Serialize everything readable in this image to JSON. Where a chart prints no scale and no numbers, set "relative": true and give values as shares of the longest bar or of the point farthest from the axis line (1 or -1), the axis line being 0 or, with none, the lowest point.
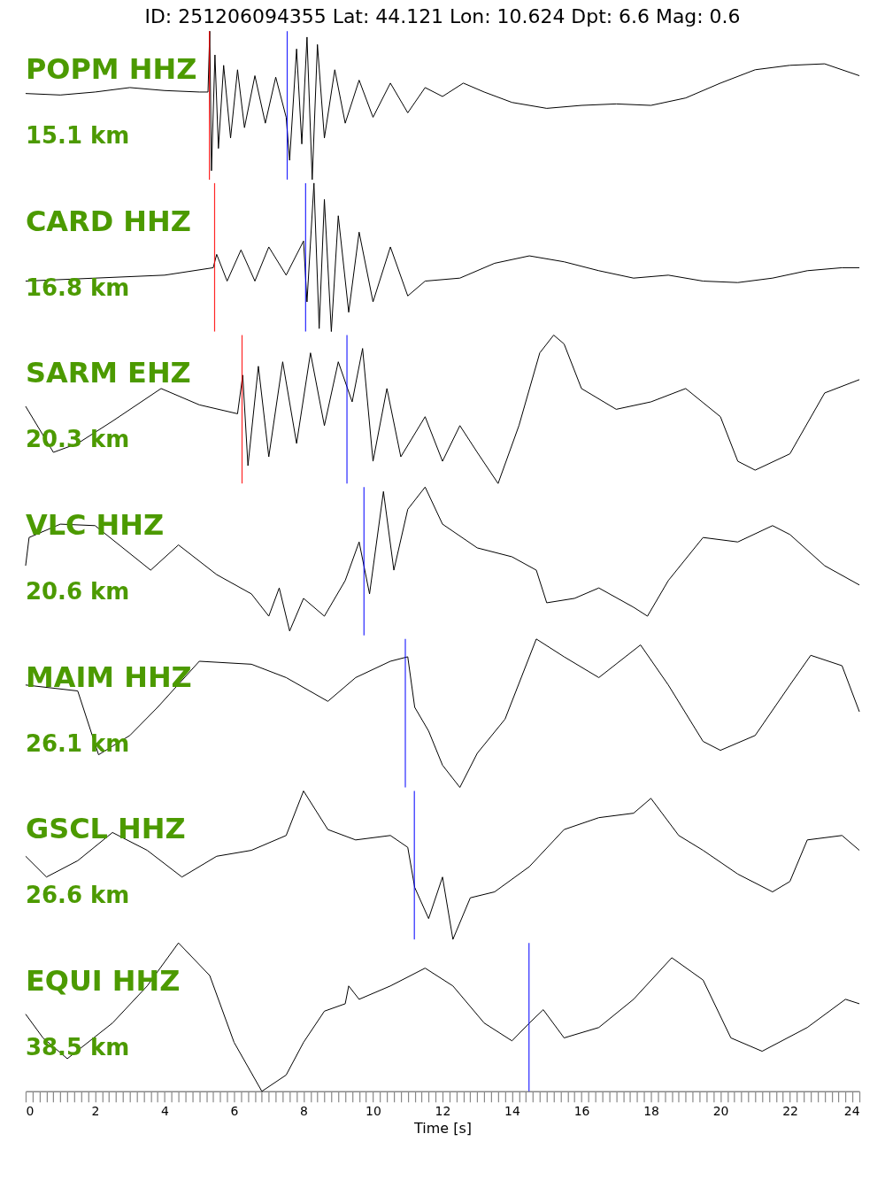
{
  "chart_data": [
    {
      "type": "line",
      "relative": true,
      "title": "ID: 251206094355 Lat:  44.121 Lon:  10.624 Dpt:     6.6 Mag:   0.6",
      "annotations": [
        "POPM HHZ",
        "15.1 km"
      ],
      "xlim": [
        0,
        24
      ],
      "tick_labels": false,
      "x": [
        0,
        1,
        2,
        3,
        4,
        5,
        5.25,
        5.3,
        5.35,
        5.45,
        5.55,
        5.7,
        5.9,
        6.1,
        6.3,
        6.6,
        6.9,
        7.2,
        7.5,
        7.6,
        7.8,
        7.95,
        8.1,
        8.25,
        8.4,
        8.6,
        8.9,
        9.2,
        9.6,
        10,
        10.5,
        11,
        11.5,
        12,
        12.6,
        13.2,
        14,
        15,
        16,
        17,
        18,
        19,
        20,
        21,
        22,
        23,
        24
      ],
      "series": [
        {
          "color": "#000000",
          "values": [
            0.58,
            0.57,
            0.59,
            0.62,
            0.6,
            0.59,
            0.59,
            1.0,
            0.06,
            0.84,
            0.21,
            0.77,
            0.28,
            0.74,
            0.35,
            0.7,
            0.38,
            0.69,
            0.42,
            0.13,
            0.88,
            0.24,
            0.96,
            0,
            0.91,
            0.28,
            0.74,
            0.38,
            0.67,
            0.42,
            0.65,
            0.45,
            0.62,
            0.56,
            0.65,
            0.59,
            0.52,
            0.48,
            0.5,
            0.51,
            0.5,
            0.55,
            0.65,
            0.74,
            0.77,
            0.78,
            0.7
          ]
        }
      ],
      "ref_lines": [
        {
          "axis": "x",
          "value": 5.29,
          "color": "#ff0000"
        },
        {
          "axis": "x",
          "value": 7.53,
          "color": "#0000ff"
        }
      ]
    },
    {
      "type": "line",
      "relative": true,
      "annotations": [
        "CARD HHZ",
        "16.8 km"
      ],
      "xlim": [
        0,
        24
      ],
      "tick_labels": false,
      "x": [
        0,
        2,
        4,
        5.4,
        5.5,
        5.8,
        6.2,
        6.6,
        7,
        7.5,
        8,
        8.1,
        8.3,
        8.45,
        8.6,
        8.8,
        9,
        9.3,
        9.6,
        10,
        10.5,
        11,
        11.5,
        12.5,
        13.5,
        14.5,
        15.5,
        16.5,
        17.5,
        18.5,
        19.5,
        20.5,
        21.5,
        22.5,
        23.5,
        24
      ],
      "series": [
        {
          "color": "#000000",
          "values": [
            0.34,
            0.36,
            0.38,
            0.43,
            0.52,
            0.34,
            0.55,
            0.34,
            0.57,
            0.38,
            0.61,
            0.2,
            1.0,
            0.02,
            0.89,
            0,
            0.78,
            0.13,
            0.67,
            0.2,
            0.57,
            0.24,
            0.34,
            0.36,
            0.46,
            0.51,
            0.47,
            0.41,
            0.36,
            0.38,
            0.34,
            0.33,
            0.36,
            0.41,
            0.43,
            0.43
          ]
        }
      ],
      "ref_lines": [
        {
          "axis": "x",
          "value": 5.44,
          "color": "#ff0000"
        },
        {
          "axis": "x",
          "value": 8.06,
          "color": "#0000ff"
        }
      ]
    },
    {
      "type": "line",
      "relative": true,
      "annotations": [
        "SARM EHZ",
        "20.3 km"
      ],
      "xlim": [
        0,
        24
      ],
      "tick_labels": false,
      "x": [
        0,
        0.8,
        1.5,
        2.5,
        3.9,
        5,
        6.1,
        6.25,
        6.4,
        6.7,
        7,
        7.4,
        7.8,
        8.2,
        8.6,
        9,
        9.4,
        9.7,
        10,
        10.4,
        10.8,
        11.5,
        12,
        12.5,
        13,
        13.6,
        14.2,
        14.8,
        15.2,
        15.5,
        16,
        17,
        18,
        19,
        20,
        20.5,
        21,
        22,
        23,
        24
      ],
      "series": [
        {
          "color": "#000000",
          "values": [
            0.52,
            0.21,
            0.27,
            0.42,
            0.64,
            0.53,
            0.47,
            0.73,
            0.12,
            0.79,
            0.18,
            0.82,
            0.27,
            0.88,
            0.39,
            0.82,
            0.55,
            0.91,
            0.15,
            0.64,
            0.18,
            0.45,
            0.15,
            0.39,
            0.21,
            0,
            0.39,
            0.88,
            1.0,
            0.94,
            0.64,
            0.5,
            0.55,
            0.64,
            0.45,
            0.15,
            0.09,
            0.2,
            0.61,
            0.7
          ]
        }
      ],
      "ref_lines": [
        {
          "axis": "x",
          "value": 6.23,
          "color": "#ff0000"
        },
        {
          "axis": "x",
          "value": 9.25,
          "color": "#0000ff"
        }
      ]
    },
    {
      "type": "line",
      "relative": true,
      "annotations": [
        "VLC HHZ",
        "20.6 km"
      ],
      "xlim": [
        0,
        24
      ],
      "tick_labels": false,
      "x": [
        0,
        0.1,
        1,
        2,
        3.6,
        4.4,
        5.5,
        6.5,
        7,
        7.3,
        7.6,
        8,
        8.6,
        9.2,
        9.6,
        9.9,
        10.3,
        10.6,
        11,
        11.5,
        12,
        13,
        14,
        14.7,
        15,
        15.8,
        16.5,
        17.5,
        17.9,
        18.5,
        19.5,
        20.5,
        21.5,
        22,
        23,
        24
      ],
      "series": [
        {
          "color": "#000000",
          "values": [
            0.47,
            0.66,
            0.75,
            0.74,
            0.44,
            0.61,
            0.41,
            0.28,
            0.13,
            0.32,
            0.03,
            0.25,
            0.13,
            0.37,
            0.63,
            0.28,
            0.97,
            0.44,
            0.85,
            1.0,
            0.75,
            0.59,
            0.53,
            0.44,
            0.22,
            0.25,
            0.32,
            0.19,
            0.13,
            0.37,
            0.66,
            0.63,
            0.74,
            0.68,
            0.47,
            0.34
          ]
        }
      ],
      "ref_lines": [
        {
          "axis": "x",
          "value": 9.74,
          "color": "#0000ff"
        }
      ]
    },
    {
      "type": "line",
      "relative": true,
      "annotations": [
        "MAIM HHZ",
        "26.1 km"
      ],
      "xlim": [
        0,
        24
      ],
      "tick_labels": false,
      "x": [
        0,
        1.5,
        2.1,
        3,
        3.8,
        5,
        6.5,
        7.5,
        8.7,
        9.5,
        10.5,
        11,
        11.2,
        11.6,
        12,
        12.5,
        13,
        13.8,
        14.7,
        15.5,
        16.5,
        17.7,
        18.5,
        19.5,
        20,
        21,
        22,
        22.6,
        23.5,
        24
      ],
      "series": [
        {
          "color": "#000000",
          "values": [
            0.69,
            0.65,
            0.22,
            0.35,
            0.54,
            0.85,
            0.83,
            0.74,
            0.58,
            0.74,
            0.85,
            0.88,
            0.54,
            0.38,
            0.15,
            0,
            0.23,
            0.46,
            1.0,
            0.88,
            0.74,
            0.96,
            0.69,
            0.31,
            0.25,
            0.35,
            0.69,
            0.89,
            0.82,
            0.51
          ]
        }
      ],
      "ref_lines": [
        {
          "axis": "x",
          "value": 10.93,
          "color": "#0000ff"
        }
      ]
    },
    {
      "type": "line",
      "relative": true,
      "annotations": [
        "GSCL HHZ",
        "26.6 km"
      ],
      "xlim": [
        0,
        24
      ],
      "tick_labels": false,
      "x": [
        0,
        0.6,
        1.5,
        2.5,
        3.5,
        4.5,
        5.5,
        6.5,
        7.5,
        8,
        8.7,
        9.5,
        10.5,
        11,
        11.2,
        11.6,
        12,
        12.3,
        12.8,
        13.5,
        14.5,
        15.5,
        16.5,
        17.5,
        18,
        18.8,
        19.5,
        20.5,
        21.5,
        22,
        22.5,
        23.5,
        24
      ],
      "series": [
        {
          "color": "#000000",
          "values": [
            0.56,
            0.42,
            0.53,
            0.72,
            0.6,
            0.42,
            0.56,
            0.6,
            0.7,
            1.0,
            0.74,
            0.67,
            0.7,
            0.62,
            0.35,
            0.14,
            0.42,
            0,
            0.28,
            0.32,
            0.49,
            0.74,
            0.82,
            0.85,
            0.95,
            0.7,
            0.6,
            0.44,
            0.32,
            0.39,
            0.67,
            0.7,
            0.6
          ]
        }
      ],
      "ref_lines": [
        {
          "axis": "x",
          "value": 11.19,
          "color": "#0000ff"
        }
      ]
    },
    {
      "type": "line",
      "relative": true,
      "annotations": [
        "EQUI HHZ",
        "38.5 km"
      ],
      "xlim": [
        0,
        24
      ],
      "tick_labels": "x",
      "xlabel": "Time [s]",
      "xticks": [
        0,
        {
          "value": 0.2,
          "label": null
        },
        {
          "value": 0.4,
          "label": null
        },
        {
          "value": 0.6,
          "label": null
        },
        {
          "value": 0.8,
          "label": null
        },
        {
          "value": 1,
          "label": null
        },
        {
          "value": 1.2,
          "label": null
        },
        {
          "value": 1.4,
          "label": null
        },
        {
          "value": 1.6,
          "label": null
        },
        {
          "value": 1.8,
          "label": null
        },
        2,
        {
          "value": 2.2,
          "label": null
        },
        {
          "value": 2.4,
          "label": null
        },
        {
          "value": 2.6,
          "label": null
        },
        {
          "value": 2.8,
          "label": null
        },
        {
          "value": 3,
          "label": null
        },
        {
          "value": 3.2,
          "label": null
        },
        {
          "value": 3.4,
          "label": null
        },
        {
          "value": 3.6,
          "label": null
        },
        {
          "value": 3.8,
          "label": null
        },
        4,
        {
          "value": 4.2,
          "label": null
        },
        {
          "value": 4.4,
          "label": null
        },
        {
          "value": 4.6,
          "label": null
        },
        {
          "value": 4.8,
          "label": null
        },
        {
          "value": 5,
          "label": null
        },
        {
          "value": 5.2,
          "label": null
        },
        {
          "value": 5.4,
          "label": null
        },
        {
          "value": 5.6,
          "label": null
        },
        {
          "value": 5.8,
          "label": null
        },
        6,
        {
          "value": 6.2,
          "label": null
        },
        {
          "value": 6.4,
          "label": null
        },
        {
          "value": 6.6,
          "label": null
        },
        {
          "value": 6.8,
          "label": null
        },
        {
          "value": 7,
          "label": null
        },
        {
          "value": 7.2,
          "label": null
        },
        {
          "value": 7.4,
          "label": null
        },
        {
          "value": 7.6,
          "label": null
        },
        {
          "value": 7.8,
          "label": null
        },
        8,
        {
          "value": 8.2,
          "label": null
        },
        {
          "value": 8.4,
          "label": null
        },
        {
          "value": 8.6,
          "label": null
        },
        {
          "value": 8.8,
          "label": null
        },
        {
          "value": 9,
          "label": null
        },
        {
          "value": 9.2,
          "label": null
        },
        {
          "value": 9.4,
          "label": null
        },
        {
          "value": 9.6,
          "label": null
        },
        {
          "value": 9.8,
          "label": null
        },
        10,
        {
          "value": 10.2,
          "label": null
        },
        {
          "value": 10.4,
          "label": null
        },
        {
          "value": 10.6,
          "label": null
        },
        {
          "value": 10.8,
          "label": null
        },
        {
          "value": 11,
          "label": null
        },
        {
          "value": 11.2,
          "label": null
        },
        {
          "value": 11.4,
          "label": null
        },
        {
          "value": 11.6,
          "label": null
        },
        {
          "value": 11.8,
          "label": null
        },
        12,
        {
          "value": 12.2,
          "label": null
        },
        {
          "value": 12.4,
          "label": null
        },
        {
          "value": 12.6,
          "label": null
        },
        {
          "value": 12.8,
          "label": null
        },
        {
          "value": 13,
          "label": null
        },
        {
          "value": 13.2,
          "label": null
        },
        {
          "value": 13.4,
          "label": null
        },
        {
          "value": 13.6,
          "label": null
        },
        {
          "value": 13.8,
          "label": null
        },
        14,
        {
          "value": 14.2,
          "label": null
        },
        {
          "value": 14.4,
          "label": null
        },
        {
          "value": 14.6,
          "label": null
        },
        {
          "value": 14.8,
          "label": null
        },
        {
          "value": 15,
          "label": null
        },
        {
          "value": 15.2,
          "label": null
        },
        {
          "value": 15.4,
          "label": null
        },
        {
          "value": 15.6,
          "label": null
        },
        {
          "value": 15.8,
          "label": null
        },
        16,
        {
          "value": 16.2,
          "label": null
        },
        {
          "value": 16.4,
          "label": null
        },
        {
          "value": 16.6,
          "label": null
        },
        {
          "value": 16.8,
          "label": null
        },
        {
          "value": 17,
          "label": null
        },
        {
          "value": 17.2,
          "label": null
        },
        {
          "value": 17.4,
          "label": null
        },
        {
          "value": 17.6,
          "label": null
        },
        {
          "value": 17.8,
          "label": null
        },
        18,
        {
          "value": 18.2,
          "label": null
        },
        {
          "value": 18.4,
          "label": null
        },
        {
          "value": 18.6,
          "label": null
        },
        {
          "value": 18.8,
          "label": null
        },
        {
          "value": 19,
          "label": null
        },
        {
          "value": 19.2,
          "label": null
        },
        {
          "value": 19.4,
          "label": null
        },
        {
          "value": 19.6,
          "label": null
        },
        {
          "value": 19.8,
          "label": null
        },
        20,
        {
          "value": 20.2,
          "label": null
        },
        {
          "value": 20.4,
          "label": null
        },
        {
          "value": 20.6,
          "label": null
        },
        {
          "value": 20.8,
          "label": null
        },
        {
          "value": 21,
          "label": null
        },
        {
          "value": 21.2,
          "label": null
        },
        {
          "value": 21.4,
          "label": null
        },
        {
          "value": 21.6,
          "label": null
        },
        {
          "value": 21.8,
          "label": null
        },
        22,
        {
          "value": 22.2,
          "label": null
        },
        {
          "value": 22.4,
          "label": null
        },
        {
          "value": 22.6,
          "label": null
        },
        {
          "value": 22.8,
          "label": null
        },
        {
          "value": 23,
          "label": null
        },
        {
          "value": 23.2,
          "label": null
        },
        {
          "value": 23.4,
          "label": null
        },
        {
          "value": 23.6,
          "label": null
        },
        {
          "value": 23.8,
          "label": null
        },
        24
      ],
      "x": [
        0,
        0.5,
        1.2,
        2.5,
        3.5,
        4.4,
        5.3,
        6,
        6.8,
        7.5,
        8,
        8.6,
        9.2,
        9.3,
        9.6,
        10.5,
        11.5,
        12.3,
        13.2,
        14,
        14.5,
        14.9,
        15.5,
        16.5,
        17.5,
        18.6,
        19.5,
        20.3,
        21.2,
        22.5,
        23.6,
        24
      ],
      "series": [
        {
          "color": "#000000",
          "values": [
            0.52,
            0.36,
            0.22,
            0.46,
            0.71,
            1.0,
            0.78,
            0.33,
            0,
            0.11,
            0.33,
            0.54,
            0.59,
            0.71,
            0.62,
            0.71,
            0.83,
            0.71,
            0.46,
            0.34,
            0.46,
            0.55,
            0.36,
            0.43,
            0.62,
            0.9,
            0.75,
            0.36,
            0.27,
            0.43,
            0.62,
            0.59
          ]
        }
      ],
      "ref_lines": [
        {
          "axis": "x",
          "value": 14.49,
          "color": "#0000ff"
        }
      ]
    }
  ]
}
